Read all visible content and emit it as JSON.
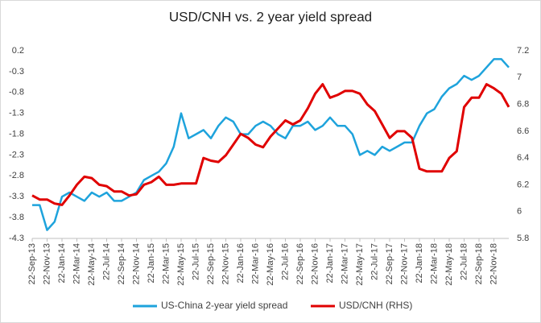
{
  "chart_data": {
    "type": "line",
    "title": "USD/CNH vs. 2 year yield spread",
    "categories": [
      "22-Sep-13",
      null,
      "22-Nov-13",
      null,
      "22-Jan-14",
      null,
      "22-Mar-14",
      null,
      "22-May-14",
      null,
      "22-Jul-14",
      null,
      "22-Sep-14",
      null,
      "22-Nov-14",
      null,
      "22-Jan-15",
      null,
      "22-Mar-15",
      null,
      "22-May-15",
      null,
      "22-Jul-15",
      null,
      "22-Sep-15",
      null,
      "22-Nov-15",
      null,
      "22-Jan-16",
      null,
      "22-Mar-16",
      null,
      "22-May-16",
      null,
      "22-Jul-16",
      null,
      "22-Sep-16",
      null,
      "22-Nov-16",
      null,
      "22-Jan-17",
      null,
      "22-Mar-17",
      null,
      "22-May-17",
      null,
      "22-Jul-17",
      null,
      "22-Sep-17",
      null,
      "22-Nov-17",
      null,
      "22-Jan-18",
      null,
      "22-Mar-18",
      null,
      "22-May-18",
      null,
      "22-Jul-18",
      null,
      "22-Sep-18",
      null,
      "22-Nov-18",
      null,
      null
    ],
    "series": [
      {
        "name": "US-China 2-year yield spread",
        "color": "#1ea3dc",
        "values": [
          -3.5,
          -3.5,
          -4.1,
          -3.9,
          -3.3,
          -3.2,
          -3.3,
          -3.4,
          -3.2,
          -3.3,
          -3.2,
          -3.4,
          -3.4,
          -3.3,
          -3.2,
          -2.9,
          -2.8,
          -2.7,
          -2.5,
          -2.1,
          -1.3,
          -1.9,
          -1.8,
          -1.7,
          -1.9,
          -1.6,
          -1.4,
          -1.5,
          -1.8,
          -1.8,
          -1.6,
          -1.5,
          -1.6,
          -1.8,
          -1.9,
          -1.6,
          -1.6,
          -1.5,
          -1.7,
          -1.6,
          -1.4,
          -1.6,
          -1.6,
          -1.8,
          -2.3,
          -2.2,
          -2.3,
          -2.1,
          -2.2,
          -2.1,
          -2.0,
          -2.0,
          -1.6,
          -1.3,
          -1.2,
          -0.9,
          -0.7,
          -0.6,
          -0.4,
          -0.5,
          -0.4,
          -0.2,
          0.0,
          0.0,
          -0.2
        ]
      },
      {
        "name": "USD/CNH (RHS)",
        "color": "#e00000",
        "axis": "y2",
        "values": [
          6.12,
          6.09,
          6.09,
          6.06,
          6.05,
          6.12,
          6.2,
          6.26,
          6.25,
          6.2,
          6.19,
          6.15,
          6.15,
          6.12,
          6.13,
          6.2,
          6.22,
          6.26,
          6.2,
          6.2,
          6.21,
          6.21,
          6.21,
          6.4,
          6.38,
          6.37,
          6.42,
          6.5,
          6.58,
          6.55,
          6.5,
          6.48,
          6.56,
          6.62,
          6.68,
          6.65,
          6.68,
          6.77,
          6.88,
          6.95,
          6.85,
          6.87,
          6.9,
          6.9,
          6.88,
          6.8,
          6.75,
          6.65,
          6.55,
          6.6,
          6.6,
          6.55,
          6.32,
          6.3,
          6.3,
          6.3,
          6.4,
          6.45,
          6.78,
          6.85,
          6.85,
          6.95,
          6.92,
          6.88,
          6.78
        ]
      }
    ],
    "ylim": [
      -4.3,
      0.2
    ],
    "yticks": [
      -4.3,
      -3.8,
      -3.3,
      -2.8,
      -2.3,
      -1.8,
      -1.3,
      -0.8,
      -0.3,
      0.2
    ],
    "y2lim": [
      5.8,
      7.2
    ],
    "y2ticks": [
      5.8,
      6,
      6.2,
      6.4,
      6.6,
      6.8,
      7,
      7.2
    ],
    "grid": false,
    "legend": "bottom"
  }
}
